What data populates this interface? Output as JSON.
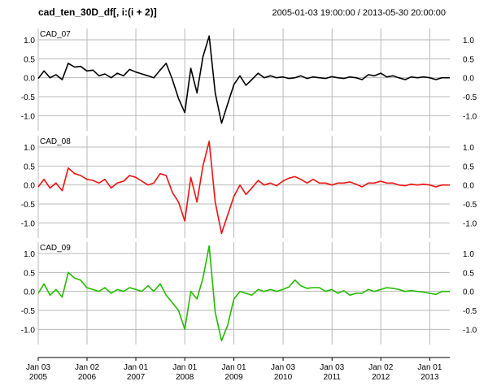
{
  "chart_data": {
    "type": "line",
    "title": "cad_ten_30D_df[, i:(i + 2)]",
    "date_range_label": "2005-01-03 19:00:00 / 2013-05-30 20:00:00",
    "x_range": [
      "2005-01-03",
      "2013-05-30"
    ],
    "ylim": [
      -1.4,
      1.3
    ],
    "grid": true,
    "legend": "none",
    "y_ticks": [
      1.0,
      0.5,
      0.0,
      -0.5,
      -1.0
    ],
    "y_tick_labels": [
      "1.0",
      "0.5",
      "0.0",
      "-0.5",
      "-1.0"
    ],
    "x_ticks": [
      {
        "date": "2005-01-03",
        "line1": "Jan 03",
        "line2": "2005"
      },
      {
        "date": "2006-01-02",
        "line1": "Jan 02",
        "line2": "2006"
      },
      {
        "date": "2007-01-01",
        "line1": "Jan 01",
        "line2": "2007"
      },
      {
        "date": "2008-01-01",
        "line1": "Jan 01",
        "line2": "2008"
      },
      {
        "date": "2009-01-01",
        "line1": "Jan 01",
        "line2": "2009"
      },
      {
        "date": "2010-01-03",
        "line1": "Jan 03",
        "line2": "2010"
      },
      {
        "date": "2011-01-03",
        "line1": "Jan 03",
        "line2": "2011"
      },
      {
        "date": "2012-01-02",
        "line1": "Jan 02",
        "line2": "2012"
      },
      {
        "date": "2013-01-01",
        "line1": "Jan 01",
        "line2": "2013"
      }
    ],
    "x_dates": [
      "2005-01-03",
      "2005-02-15",
      "2005-04-01",
      "2005-05-15",
      "2005-07-01",
      "2005-08-15",
      "2005-10-01",
      "2005-11-15",
      "2006-01-01",
      "2006-02-15",
      "2006-04-01",
      "2006-05-15",
      "2006-07-01",
      "2006-08-15",
      "2006-10-01",
      "2006-11-15",
      "2007-01-01",
      "2007-02-15",
      "2007-04-01",
      "2007-05-15",
      "2007-07-01",
      "2007-08-15",
      "2007-10-01",
      "2007-11-15",
      "2008-01-01",
      "2008-02-15",
      "2008-04-01",
      "2008-05-15",
      "2008-07-01",
      "2008-08-15",
      "2008-10-01",
      "2008-11-15",
      "2009-01-01",
      "2009-02-15",
      "2009-04-01",
      "2009-05-15",
      "2009-07-01",
      "2009-08-15",
      "2009-10-01",
      "2009-11-15",
      "2010-01-01",
      "2010-02-15",
      "2010-04-01",
      "2010-05-15",
      "2010-07-01",
      "2010-08-15",
      "2010-10-01",
      "2010-11-15",
      "2011-01-01",
      "2011-02-15",
      "2011-04-01",
      "2011-05-15",
      "2011-07-01",
      "2011-08-15",
      "2011-10-01",
      "2011-11-15",
      "2012-01-01",
      "2012-02-15",
      "2012-04-01",
      "2012-05-15",
      "2012-07-01",
      "2012-08-15",
      "2012-10-01",
      "2012-11-15",
      "2013-01-01",
      "2013-02-15",
      "2013-04-01",
      "2013-05-30"
    ],
    "series": [
      {
        "name": "CAD_07",
        "color": "#000000",
        "values": [
          -0.02,
          0.18,
          0.0,
          0.08,
          -0.05,
          0.38,
          0.28,
          0.3,
          0.18,
          0.2,
          0.05,
          0.1,
          0.0,
          0.12,
          0.05,
          0.22,
          0.15,
          0.1,
          0.05,
          0.0,
          0.2,
          0.38,
          -0.05,
          -0.55,
          -0.92,
          0.25,
          -0.4,
          0.55,
          1.1,
          -0.4,
          -1.2,
          -0.7,
          -0.18,
          0.05,
          -0.2,
          -0.05,
          0.12,
          0.0,
          0.05,
          0.0,
          0.02,
          -0.02,
          0.0,
          0.05,
          -0.02,
          0.02,
          0.0,
          -0.02,
          0.03,
          0.0,
          -0.02,
          0.02,
          0.0,
          -0.05,
          0.08,
          0.05,
          0.12,
          0.02,
          0.05,
          0.0,
          -0.05,
          0.02,
          0.0,
          0.02,
          0.0,
          -0.05,
          0.0,
          0.0
        ]
      },
      {
        "name": "CAD_08",
        "color": "#ee1111",
        "values": [
          -0.05,
          0.15,
          -0.08,
          0.05,
          -0.15,
          0.45,
          0.3,
          0.25,
          0.15,
          0.12,
          0.05,
          0.15,
          -0.08,
          0.05,
          0.1,
          0.25,
          0.2,
          0.1,
          0.0,
          0.05,
          0.3,
          0.25,
          -0.2,
          -0.45,
          -0.95,
          0.2,
          -0.45,
          0.5,
          1.15,
          -0.45,
          -1.28,
          -0.8,
          -0.3,
          0.0,
          -0.25,
          -0.08,
          0.12,
          0.0,
          0.05,
          -0.02,
          0.1,
          0.18,
          0.22,
          0.15,
          0.05,
          0.15,
          0.05,
          0.05,
          0.0,
          0.05,
          0.05,
          0.08,
          0.02,
          -0.05,
          0.05,
          0.05,
          0.1,
          0.05,
          0.05,
          0.0,
          -0.02,
          0.02,
          0.0,
          0.02,
          0.0,
          -0.05,
          0.0,
          0.0
        ]
      },
      {
        "name": "CAD_09",
        "color": "#22bb00",
        "values": [
          -0.05,
          0.2,
          -0.1,
          0.05,
          -0.15,
          0.5,
          0.35,
          0.3,
          0.1,
          0.05,
          0.0,
          0.1,
          -0.05,
          0.05,
          0.0,
          0.1,
          0.05,
          0.0,
          0.15,
          0.0,
          0.2,
          -0.1,
          -0.3,
          -0.5,
          -1.0,
          0.0,
          -0.2,
          0.35,
          1.2,
          -0.55,
          -1.3,
          -0.9,
          -0.2,
          0.0,
          -0.05,
          -0.1,
          0.05,
          0.0,
          0.05,
          0.0,
          0.05,
          0.12,
          0.3,
          0.15,
          0.08,
          0.1,
          0.1,
          0.0,
          0.05,
          -0.05,
          0.02,
          -0.1,
          -0.05,
          -0.05,
          0.05,
          0.0,
          0.05,
          0.1,
          0.08,
          0.05,
          0.0,
          0.02,
          0.0,
          -0.02,
          -0.05,
          -0.08,
          0.0,
          0.0
        ]
      }
    ]
  }
}
